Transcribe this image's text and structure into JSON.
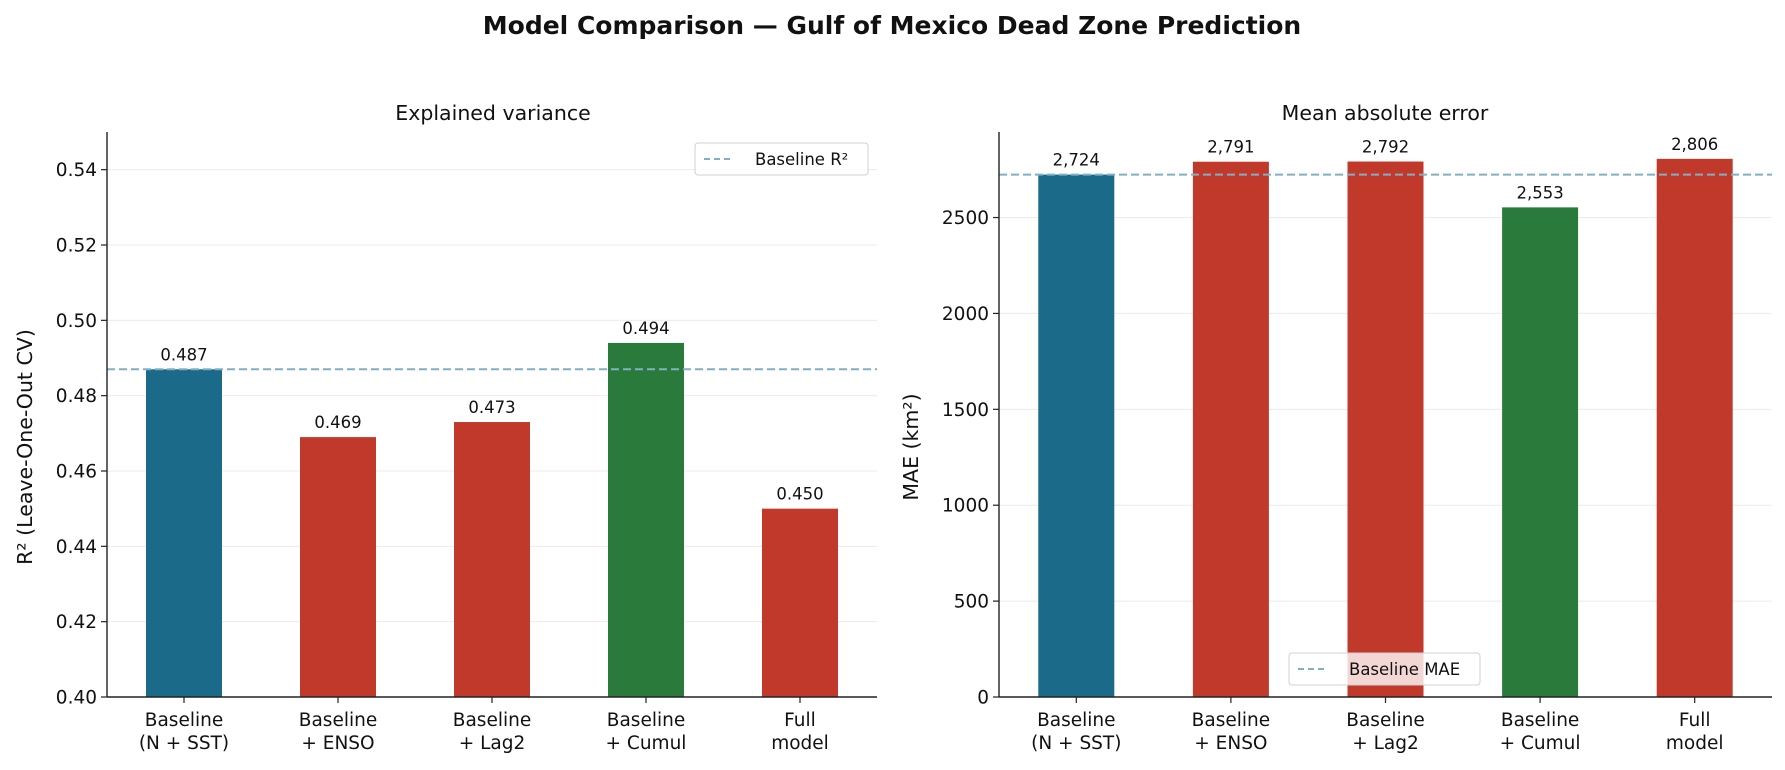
{
  "figure": {
    "title": "Model Comparison — Gulf of Mexico Dead Zone Prediction"
  },
  "chart_data": [
    {
      "type": "bar",
      "title": "Explained variance",
      "xlabel": "",
      "ylabel": "R² (Leave-One-Out CV)",
      "categories": [
        [
          "Baseline",
          "(N + SST)"
        ],
        [
          "Baseline",
          "+ ENSO"
        ],
        [
          "Baseline",
          "+ Lag2"
        ],
        [
          "Baseline",
          "+ Cumul"
        ],
        [
          "Full",
          "model"
        ]
      ],
      "values": [
        0.487,
        0.469,
        0.473,
        0.494,
        0.45
      ],
      "value_labels": [
        "0.487",
        "0.469",
        "0.473",
        "0.494",
        "0.450"
      ],
      "bar_colors": [
        "#1b6a8a",
        "#c0392b",
        "#c0392b",
        "#2a7a3b",
        "#c0392b"
      ],
      "ylim": [
        0.4,
        0.55
      ],
      "yticks": [
        0.4,
        0.42,
        0.44,
        0.46,
        0.48,
        0.5,
        0.52,
        0.54
      ],
      "ytick_labels": [
        "0.40",
        "0.42",
        "0.44",
        "0.46",
        "0.48",
        "0.50",
        "0.52",
        "0.54"
      ],
      "reference_line": {
        "value": 0.487,
        "label": "Baseline R²",
        "color": "#7fb0c8"
      },
      "legend_position": "top-right",
      "grid": "horizontal"
    },
    {
      "type": "bar",
      "title": "Mean absolute error",
      "xlabel": "",
      "ylabel": "MAE (km²)",
      "categories": [
        [
          "Baseline",
          "(N + SST)"
        ],
        [
          "Baseline",
          "+ ENSO"
        ],
        [
          "Baseline",
          "+ Lag2"
        ],
        [
          "Baseline",
          "+ Cumul"
        ],
        [
          "Full",
          "model"
        ]
      ],
      "values": [
        2724,
        2791,
        2792,
        2553,
        2806
      ],
      "value_labels": [
        "2,724",
        "2,791",
        "2,792",
        "2,553",
        "2,806"
      ],
      "bar_colors": [
        "#1b6a8a",
        "#c0392b",
        "#c0392b",
        "#2a7a3b",
        "#c0392b"
      ],
      "ylim": [
        0,
        2946
      ],
      "yticks": [
        0,
        500,
        1000,
        1500,
        2000,
        2500
      ],
      "ytick_labels": [
        "0",
        "500",
        "1000",
        "1500",
        "2000",
        "2500"
      ],
      "reference_line": {
        "value": 2724,
        "label": "Baseline MAE",
        "color": "#7fb0c8"
      },
      "legend_position": "bottom-center",
      "grid": "horizontal"
    }
  ]
}
